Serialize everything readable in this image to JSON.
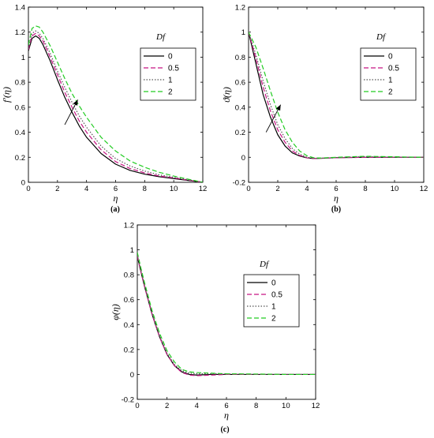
{
  "chart_data": [
    {
      "type": "line",
      "caption": "(a)",
      "xlabel": "η",
      "ylabel": "f′(η)",
      "xlim": [
        0,
        12
      ],
      "ylim": [
        0,
        1.4
      ],
      "xticks": [
        "0",
        "2",
        "4",
        "6",
        "8",
        "10",
        "12"
      ],
      "yticks": [
        "0",
        "0.2",
        "0.4",
        "0.6",
        "0.8",
        "1",
        "1.2",
        "1.4"
      ],
      "legend_title": "Df",
      "legend_position": "top-right",
      "series": [
        {
          "name": "0",
          "color": "#000000",
          "dash": "solid",
          "x": [
            0,
            0.25,
            0.5,
            0.75,
            1,
            1.5,
            2,
            2.5,
            3,
            3.5,
            4,
            5,
            6,
            7,
            8,
            9,
            10,
            11,
            12
          ],
          "y": [
            1.05,
            1.15,
            1.17,
            1.15,
            1.1,
            0.97,
            0.82,
            0.68,
            0.56,
            0.45,
            0.36,
            0.23,
            0.145,
            0.095,
            0.065,
            0.045,
            0.03,
            0.015,
            0
          ]
        },
        {
          "name": "0.5",
          "color": "#c71585",
          "dash": "dash",
          "x": [
            0,
            0.25,
            0.5,
            0.75,
            1,
            1.5,
            2,
            2.5,
            3,
            3.5,
            4,
            5,
            6,
            7,
            8,
            9,
            10,
            11,
            12
          ],
          "y": [
            1.06,
            1.17,
            1.19,
            1.17,
            1.13,
            1.0,
            0.86,
            0.72,
            0.6,
            0.49,
            0.4,
            0.26,
            0.165,
            0.11,
            0.075,
            0.05,
            0.035,
            0.017,
            0
          ]
        },
        {
          "name": "1",
          "color": "#555555",
          "dash": "dot",
          "x": [
            0,
            0.25,
            0.5,
            0.75,
            1,
            1.5,
            2,
            2.5,
            3,
            3.5,
            4,
            5,
            6,
            7,
            8,
            9,
            10,
            11,
            12
          ],
          "y": [
            1.07,
            1.19,
            1.21,
            1.19,
            1.15,
            1.03,
            0.89,
            0.76,
            0.64,
            0.53,
            0.44,
            0.29,
            0.19,
            0.13,
            0.09,
            0.06,
            0.04,
            0.02,
            0
          ]
        },
        {
          "name": "2",
          "color": "#22cc22",
          "dash": "dash",
          "x": [
            0,
            0.25,
            0.5,
            0.75,
            1,
            1.5,
            2,
            2.5,
            3,
            3.5,
            4,
            5,
            6,
            7,
            8,
            9,
            10,
            11,
            12
          ],
          "y": [
            1.1,
            1.23,
            1.25,
            1.24,
            1.2,
            1.09,
            0.96,
            0.83,
            0.71,
            0.61,
            0.52,
            0.36,
            0.25,
            0.17,
            0.12,
            0.08,
            0.05,
            0.025,
            0
          ]
        }
      ],
      "arrow": {
        "from": [
          2.5,
          0.46
        ],
        "to": [
          3.4,
          0.66
        ]
      }
    },
    {
      "type": "line",
      "caption": "(b)",
      "xlabel": "η",
      "ylabel": "ϑ(η)",
      "xlim": [
        0,
        12
      ],
      "ylim": [
        -0.2,
        1.2
      ],
      "xticks": [
        "0",
        "2",
        "4",
        "6",
        "8",
        "10",
        "12"
      ],
      "yticks": [
        "-0.2",
        "0",
        "0.2",
        "0.4",
        "0.6",
        "0.8",
        "1",
        "1.2"
      ],
      "legend_title": "Df",
      "legend_position": "top-right",
      "series": [
        {
          "name": "0",
          "color": "#000000",
          "dash": "solid",
          "x": [
            0,
            0.5,
            1,
            1.5,
            2,
            2.5,
            3,
            3.5,
            4,
            4.5,
            5,
            6,
            8,
            10,
            12
          ],
          "y": [
            1,
            0.75,
            0.5,
            0.32,
            0.18,
            0.09,
            0.035,
            0.01,
            -0.005,
            -0.01,
            -0.008,
            -0.003,
            0,
            0,
            0
          ]
        },
        {
          "name": "0.5",
          "color": "#c71585",
          "dash": "dash",
          "x": [
            0,
            0.5,
            1,
            1.5,
            2,
            2.5,
            3,
            3.5,
            4,
            4.5,
            5,
            6,
            8,
            10,
            12
          ],
          "y": [
            1,
            0.79,
            0.56,
            0.37,
            0.22,
            0.12,
            0.05,
            0.015,
            -0.004,
            -0.01,
            -0.008,
            -0.003,
            0,
            0,
            0
          ]
        },
        {
          "name": "1",
          "color": "#555555",
          "dash": "dot",
          "x": [
            0,
            0.5,
            1,
            1.5,
            2,
            2.5,
            3,
            3.5,
            4,
            4.5,
            5,
            6,
            8,
            10,
            12
          ],
          "y": [
            1,
            0.82,
            0.61,
            0.42,
            0.26,
            0.15,
            0.07,
            0.025,
            0,
            -0.008,
            -0.007,
            -0.002,
            0.005,
            0,
            0
          ]
        },
        {
          "name": "2",
          "color": "#22cc22",
          "dash": "dash",
          "x": [
            0,
            0.5,
            1,
            1.5,
            2,
            2.5,
            3,
            3.5,
            4,
            4.5,
            5,
            6,
            8,
            10,
            12
          ],
          "y": [
            1,
            0.88,
            0.71,
            0.53,
            0.36,
            0.22,
            0.12,
            0.05,
            0.012,
            -0.005,
            -0.006,
            0,
            0.008,
            0.004,
            0
          ]
        }
      ],
      "arrow": {
        "from": [
          1.2,
          0.2
        ],
        "to": [
          2.2,
          0.42
        ]
      }
    },
    {
      "type": "line",
      "caption": "(c)",
      "xlabel": "η",
      "ylabel": "φ(η)",
      "xlim": [
        0,
        12
      ],
      "ylim": [
        -0.2,
        1.2
      ],
      "xticks": [
        "0",
        "2",
        "4",
        "6",
        "8",
        "10",
        "12"
      ],
      "yticks": [
        "-0.2",
        "0",
        "0.2",
        "0.4",
        "0.6",
        "0.8",
        "1",
        "1.2"
      ],
      "legend_title": "Df",
      "legend_position": "top-right",
      "series": [
        {
          "name": "0",
          "color": "#000000",
          "dash": "solid",
          "x": [
            0,
            0.25,
            0.5,
            1,
            1.5,
            2,
            2.5,
            3,
            3.5,
            4,
            5,
            6,
            8,
            10,
            12
          ],
          "y": [
            0.95,
            0.82,
            0.7,
            0.48,
            0.3,
            0.16,
            0.07,
            0.02,
            0,
            -0.005,
            0,
            0,
            0,
            0,
            0
          ]
        },
        {
          "name": "0.5",
          "color": "#c71585",
          "dash": "dash",
          "x": [
            0,
            0.25,
            0.5,
            1,
            1.5,
            2,
            2.5,
            3,
            3.5,
            4,
            5,
            6,
            8,
            10,
            12
          ],
          "y": [
            0.95,
            0.82,
            0.7,
            0.48,
            0.3,
            0.16,
            0.07,
            0.015,
            -0.005,
            -0.01,
            -0.005,
            0,
            0,
            0,
            0
          ]
        },
        {
          "name": "1",
          "color": "#555555",
          "dash": "dot",
          "x": [
            0,
            0.25,
            0.5,
            1,
            1.5,
            2,
            2.5,
            3,
            3.5,
            4,
            5,
            6,
            8,
            10,
            12
          ],
          "y": [
            0.96,
            0.83,
            0.71,
            0.49,
            0.31,
            0.17,
            0.08,
            0.03,
            0.01,
            0.005,
            0.005,
            0.003,
            0,
            0,
            0
          ]
        },
        {
          "name": "2",
          "color": "#22cc22",
          "dash": "dash",
          "x": [
            0,
            0.25,
            0.5,
            1,
            1.5,
            2,
            2.5,
            3,
            3.5,
            4,
            5,
            6,
            8,
            10,
            12
          ],
          "y": [
            0.98,
            0.85,
            0.73,
            0.51,
            0.33,
            0.19,
            0.1,
            0.04,
            0.02,
            0.015,
            0.01,
            0.005,
            0.003,
            0,
            0
          ]
        }
      ]
    }
  ]
}
